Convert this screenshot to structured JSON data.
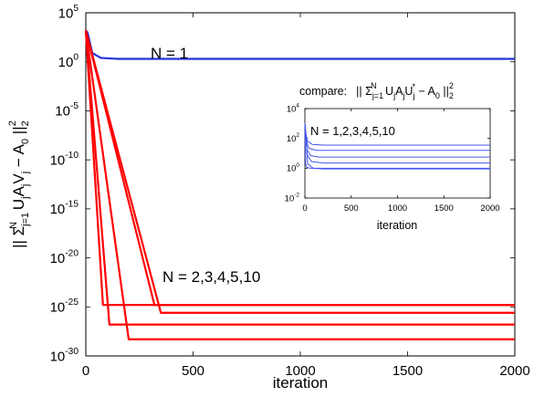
{
  "chart_data": [
    {
      "type": "line",
      "xlabel": "iteration",
      "ylabel": "|| Σ_{j=1}^N U_j A_j V_j − A_0 ||_2^2",
      "ylabel_parts": {
        "pre": "|| Σ",
        "sub1": "j=1",
        "sup1": "N",
        "mid": " U",
        "sub2": "j",
        "a": "A",
        "sub3": "j",
        "v": "V",
        "sub4": "j",
        "post": " − A",
        "sub5": "0",
        "end": " ||",
        "sub6": "2",
        "sup2": "2"
      },
      "yscale": "log",
      "xlim": [
        0,
        2000
      ],
      "ylim_exp": [
        -30,
        5
      ],
      "xticks": [
        "0",
        "500",
        "1000",
        "1500",
        "2000"
      ],
      "yticks": [
        {
          "base": "10",
          "exp": "5"
        },
        {
          "base": "10",
          "exp": "0"
        },
        {
          "base": "10",
          "exp": "-5"
        },
        {
          "base": "10",
          "exp": "-10"
        },
        {
          "base": "10",
          "exp": "-15"
        },
        {
          "base": "10",
          "exp": "-20"
        },
        {
          "base": "10",
          "exp": "-25"
        },
        {
          "base": "10",
          "exp": "-30"
        }
      ],
      "annotations": {
        "n1": "N = 1",
        "nmulti": "N = 2,3,4,5,10"
      },
      "colors": {
        "n1": "#2233dd",
        "multi": "#ff0000"
      },
      "series": [
        {
          "points": [
            [
              0,
              3.2
            ],
            [
              8,
              3.0
            ],
            [
              30,
              0.9
            ],
            [
              70,
              0.4
            ],
            [
              150,
              0.3
            ],
            [
              2000,
              0.3
            ]
          ]
        },
        {
          "points": [
            [
              0,
              3.2
            ],
            [
              80,
              -24.8
            ],
            [
              2000,
              -24.8
            ]
          ]
        },
        {
          "points": [
            [
              0,
              3.2
            ],
            [
              110,
              -26.8
            ],
            [
              2000,
              -26.8
            ]
          ]
        },
        {
          "points": [
            [
              0,
              3.2
            ],
            [
              320,
              -24.8
            ],
            [
              2000,
              -24.8
            ]
          ]
        },
        {
          "points": [
            [
              0,
              3.2
            ],
            [
              350,
              -25.6
            ],
            [
              2000,
              -25.6
            ]
          ]
        },
        {
          "points": [
            [
              0,
              3.2
            ],
            [
              200,
              -28.3
            ],
            [
              2000,
              -28.3
            ]
          ]
        }
      ]
    },
    {
      "type": "line",
      "title_parts": {
        "label": "compare:",
        "pre": "|| Σ",
        "sub1": "j=1",
        "sup1": "N",
        "u": " U",
        "sub2": "j",
        "a": "A",
        "sub3": "j",
        "u2": "U",
        "sub4": "j",
        "sup2": "*",
        "post": " − A",
        "sub5": "0",
        "end": " ||",
        "sub6": "2",
        "sup3": "2"
      },
      "xlabel": "iteration",
      "yscale": "log",
      "xlim": [
        0,
        2000
      ],
      "ylim_exp": [
        -2,
        4
      ],
      "xticks": [
        "0",
        "500",
        "1000",
        "1500",
        "2000"
      ],
      "yticks": [
        {
          "base": "10",
          "exp": "4"
        },
        {
          "base": "10",
          "exp": "2"
        },
        {
          "base": "10",
          "exp": "0"
        },
        {
          "base": "10",
          "exp": "-2"
        }
      ],
      "annotation": "N = 1,2,3,4,5,10",
      "color": "#4455ee",
      "series": [
        {
          "points": [
            [
              0,
              3.0
            ],
            [
              15,
              2.2
            ],
            [
              30,
              1.8
            ],
            [
              80,
              1.6
            ],
            [
              200,
              1.55
            ],
            [
              2000,
              1.55
            ]
          ]
        },
        {
          "points": [
            [
              0,
              3.0
            ],
            [
              15,
              1.9
            ],
            [
              40,
              1.35
            ],
            [
              120,
              1.2
            ],
            [
              2000,
              1.2
            ]
          ]
        },
        {
          "points": [
            [
              0,
              3.0
            ],
            [
              20,
              1.3
            ],
            [
              60,
              0.85
            ],
            [
              150,
              0.75
            ],
            [
              2000,
              0.75
            ]
          ]
        },
        {
          "points": [
            [
              0,
              3.0
            ],
            [
              25,
              0.9
            ],
            [
              70,
              0.45
            ],
            [
              200,
              0.35
            ],
            [
              2000,
              0.35
            ]
          ]
        },
        {
          "points": [
            [
              0,
              3.0
            ],
            [
              30,
              0.3
            ],
            [
              90,
              0.0
            ],
            [
              200,
              -0.05
            ],
            [
              2000,
              -0.05
            ]
          ]
        },
        {
          "points": [
            [
              0,
              3.0
            ],
            [
              8,
              0.3
            ],
            [
              20,
              0.05
            ],
            [
              60,
              0.0
            ],
            [
              2000,
              0.0
            ]
          ]
        }
      ]
    }
  ]
}
